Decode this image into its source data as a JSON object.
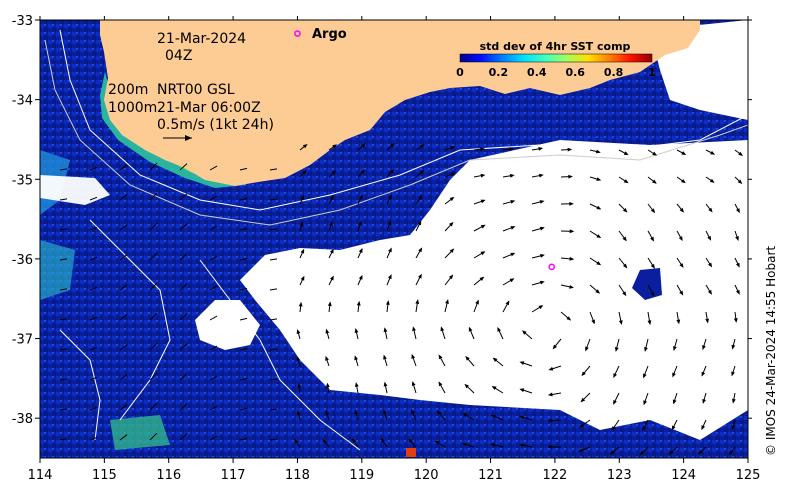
{
  "map": {
    "lon_ticks": [
      "114",
      "115",
      "116",
      "117",
      "118",
      "119",
      "120",
      "121",
      "122",
      "123",
      "124",
      "125"
    ],
    "lat_ticks": [
      "-33",
      "-34",
      "-35",
      "-36",
      "-37",
      "-38"
    ],
    "lon_range": [
      114,
      125
    ],
    "lat_range": [
      -38.5,
      -33
    ],
    "land_color": "#fdcb94",
    "ocean_low_color": "#0a1f9e",
    "cloud_color": "#ffffff"
  },
  "annotations": {
    "date": "21-Mar-2024",
    "time": "04Z",
    "contour_200": "200m",
    "contour_1000": "1000m",
    "current_product": "NRT00 GSL",
    "current_time": "21-Mar 06:00Z",
    "scale_arrow": "0.5m/s (1kt 24h)",
    "argo_label": "Argo"
  },
  "argo_floats": [
    {
      "lon": 118.0,
      "lat": -33.17
    },
    {
      "lon": 121.95,
      "lat": -36.1
    }
  ],
  "colorbar": {
    "title": "std dev of 4hr SST comp",
    "ticks": [
      "0",
      "0.2",
      "0.4",
      "0.6",
      "0.8",
      "1"
    ],
    "colors": [
      "#00008f",
      "#0010ff",
      "#0080ff",
      "#00e0ff",
      "#40ffbf",
      "#a0ff60",
      "#ffe000",
      "#ff8000",
      "#ff1000",
      "#8f0000"
    ]
  },
  "credit": "© IMOS 24-Mar-2024 14:55 Hobart"
}
